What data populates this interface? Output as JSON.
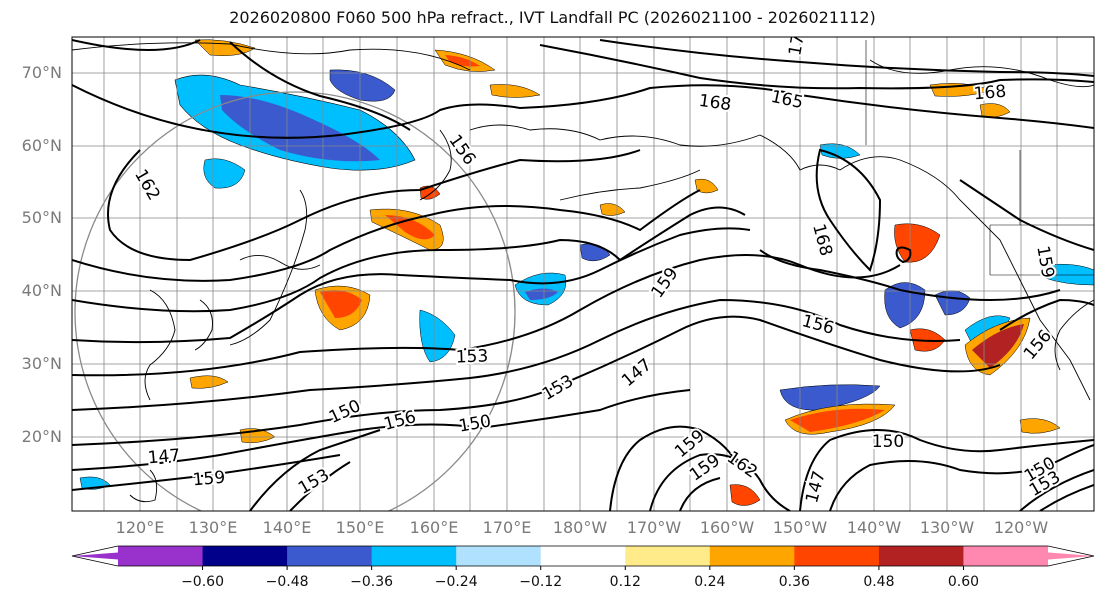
{
  "title": "2026020800 F060 500 hPa refract., IVT Landfall PC (2026021100 - 2026021112)",
  "lat_labels": [
    "70°N",
    "60°N",
    "50°N",
    "40°N",
    "30°N",
    "20°N"
  ],
  "lon_labels": [
    "120°E",
    "130°E",
    "140°E",
    "150°E",
    "160°E",
    "170°E",
    "180°W",
    "170°W",
    "160°W",
    "150°W",
    "140°W",
    "130°W",
    "120°W"
  ],
  "contour_labels": [
    "168",
    "162",
    "165",
    "168",
    "156",
    "168",
    "159",
    "159",
    "156",
    "153",
    "153",
    "147",
    "150",
    "156",
    "150",
    "150",
    "147",
    "159",
    "159",
    "162",
    "153",
    "159",
    "150",
    "153",
    "17",
    "156",
    "147"
  ],
  "colorbar": {
    "colors": [
      "#9932cc",
      "#00008b",
      "#3a5acd",
      "#00bfff",
      "#b0e2ff",
      "#ffffff",
      "#ffeb8a",
      "#ffa500",
      "#ff4500",
      "#b22222",
      "#ff88b0"
    ],
    "tick_labels": [
      "−0.60",
      "−0.48",
      "−0.36",
      "−0.24",
      "−0.12",
      "0.12",
      "0.24",
      "0.36",
      "0.48",
      "0.60"
    ]
  }
}
